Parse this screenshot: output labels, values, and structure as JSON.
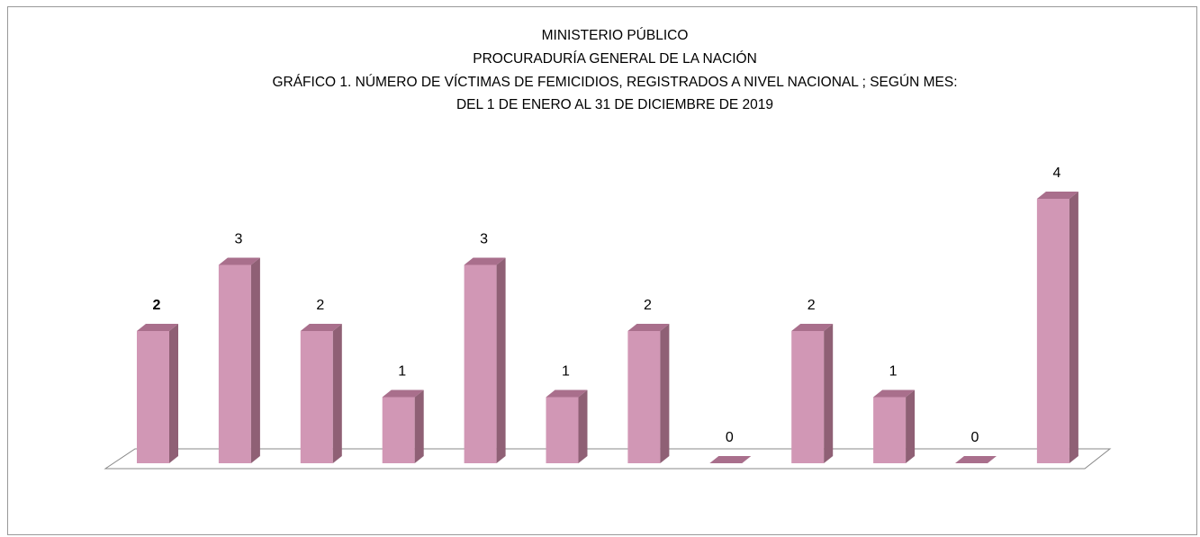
{
  "chart_data": {
    "type": "bar3d",
    "title": [
      "MINISTERIO PÚBLICO",
      "PROCURADURÍA GENERAL DE LA NACIÓN",
      "GRÁFICO 1. NÚMERO DE VÍCTIMAS DE FEMICIDIOS, REGISTRADOS A NIVEL NACIONAL ; SEGÚN MES:",
      "DEL 1  DE ENERO AL 31  DE DICIEMBRE  DE 2019"
    ],
    "values": [
      2,
      3,
      2,
      1,
      3,
      1,
      2,
      0,
      2,
      1,
      0,
      4
    ],
    "color": "#d197b5",
    "ylim": [
      0,
      4
    ]
  }
}
